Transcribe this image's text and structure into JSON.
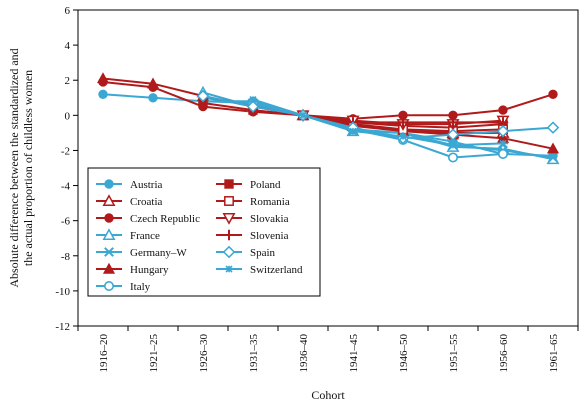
{
  "chart_data": {
    "type": "line",
    "title": "",
    "xlabel": "Cohort",
    "ylabel_lines": [
      "Absolute difference between the standardized and",
      "the actual proportion of childless women"
    ],
    "categories": [
      "1916–20",
      "1921–25",
      "1926–30",
      "1931–35",
      "1936–40",
      "1941–45",
      "1946–50",
      "1951–55",
      "1956–60",
      "1961–65"
    ],
    "ylim": [
      -12,
      6
    ],
    "yticks": [
      6,
      4,
      2,
      0,
      -2,
      -4,
      -6,
      -8,
      -10,
      -12
    ],
    "grid": false,
    "legend_position": "bottom-left",
    "colors": {
      "blue": "#3ba8d4",
      "red": "#b11a1a"
    },
    "series": [
      {
        "name": "Austria",
        "color": "#3ba8d4",
        "marker": "circle-filled",
        "values": [
          1.2,
          1.0,
          0.8,
          0.8,
          0.0,
          -0.8,
          -1.0,
          -1.5,
          -2.2,
          -2.3
        ]
      },
      {
        "name": "Croatia",
        "color": "#b11a1a",
        "marker": "triangle-up-open",
        "values": [
          null,
          null,
          null,
          null,
          0.0,
          -0.6,
          -0.9,
          -1.0,
          -1.0,
          null
        ]
      },
      {
        "name": "Czech Republic",
        "color": "#b11a1a",
        "marker": "circle-filled",
        "values": [
          1.9,
          1.6,
          0.5,
          0.2,
          0.0,
          -0.2,
          0.0,
          0.0,
          0.3,
          1.2
        ]
      },
      {
        "name": "France",
        "color": "#3ba8d4",
        "marker": "triangle-up-open",
        "values": [
          null,
          null,
          1.3,
          0.5,
          0.0,
          -0.9,
          -1.0,
          -1.8,
          -1.9,
          -2.5
        ]
      },
      {
        "name": "Germany–W",
        "color": "#3ba8d4",
        "marker": "x",
        "values": [
          null,
          null,
          1.0,
          0.6,
          0.0,
          -0.9,
          -1.0,
          -1.7,
          -2.0,
          -2.4
        ]
      },
      {
        "name": "Hungary",
        "color": "#b11a1a",
        "marker": "triangle-up-filled",
        "values": [
          2.1,
          1.8,
          1.1,
          0.5,
          0.0,
          -0.5,
          -0.9,
          -1.1,
          -1.3,
          -1.9
        ]
      },
      {
        "name": "Italy",
        "color": "#3ba8d4",
        "marker": "circle-open",
        "values": [
          null,
          null,
          0.8,
          0.7,
          0.0,
          -0.8,
          -1.4,
          -2.4,
          -2.2,
          null
        ]
      },
      {
        "name": "Poland",
        "color": "#b11a1a",
        "marker": "square-filled",
        "values": [
          null,
          null,
          0.7,
          0.3,
          0.0,
          -0.4,
          -0.6,
          -0.7,
          -0.5,
          null
        ]
      },
      {
        "name": "Romania",
        "color": "#b11a1a",
        "marker": "square-open",
        "values": [
          null,
          null,
          null,
          null,
          0.0,
          -0.5,
          -0.8,
          -0.9,
          -0.8,
          null
        ]
      },
      {
        "name": "Slovakia",
        "color": "#b11a1a",
        "marker": "triangle-down-open",
        "values": [
          null,
          null,
          null,
          null,
          0.0,
          -0.3,
          -0.5,
          -0.5,
          -0.3,
          null
        ]
      },
      {
        "name": "Slovenia",
        "color": "#b11a1a",
        "marker": "plus",
        "values": [
          null,
          null,
          null,
          null,
          0.0,
          -0.4,
          -0.4,
          -0.4,
          -0.4,
          null
        ]
      },
      {
        "name": "Spain",
        "color": "#3ba8d4",
        "marker": "diamond-open",
        "values": [
          null,
          null,
          1.1,
          0.5,
          0.0,
          -0.7,
          -1.3,
          -1.1,
          -0.9,
          -0.7
        ]
      },
      {
        "name": "Switzerland",
        "color": "#3ba8d4",
        "marker": "star",
        "values": [
          null,
          null,
          null,
          0.9,
          0.0,
          -0.9,
          -1.2,
          -1.7,
          -1.6,
          null
        ]
      }
    ]
  }
}
